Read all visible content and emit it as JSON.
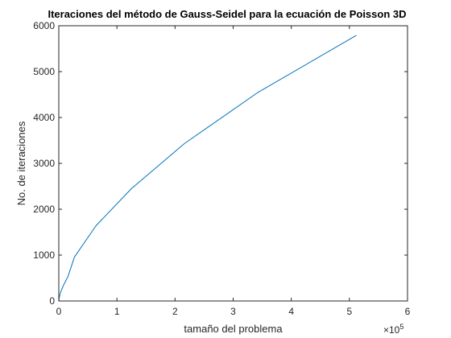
{
  "chart_data": {
    "type": "line",
    "title": "Iteraciones del método de Gauss-Seidel para la ecuación de Poisson 3D",
    "xlabel": "tamaño del problema",
    "ylabel": "No. de iteraciones",
    "x_exponent_label": "×10",
    "x_exponent_power": "5",
    "xlim": [
      0,
      600000
    ],
    "ylim": [
      0,
      6000
    ],
    "x_ticks": [
      0,
      100000,
      200000,
      300000,
      400000,
      500000,
      600000
    ],
    "x_tick_labels": [
      "0",
      "1",
      "2",
      "3",
      "4",
      "5",
      "6"
    ],
    "y_ticks": [
      0,
      1000,
      2000,
      3000,
      4000,
      5000,
      6000
    ],
    "y_tick_labels": [
      "0",
      "1000",
      "2000",
      "3000",
      "4000",
      "5000",
      "6000"
    ],
    "grid": false,
    "series": [
      {
        "color": "#0072bd",
        "x": [
          0,
          1000,
          3375,
          8000,
          15625,
          27000,
          64000,
          125000,
          216000,
          343000,
          512000
        ],
        "y": [
          0,
          95,
          200,
          340,
          530,
          960,
          1640,
          2450,
          3430,
          4550,
          5790
        ]
      }
    ]
  }
}
